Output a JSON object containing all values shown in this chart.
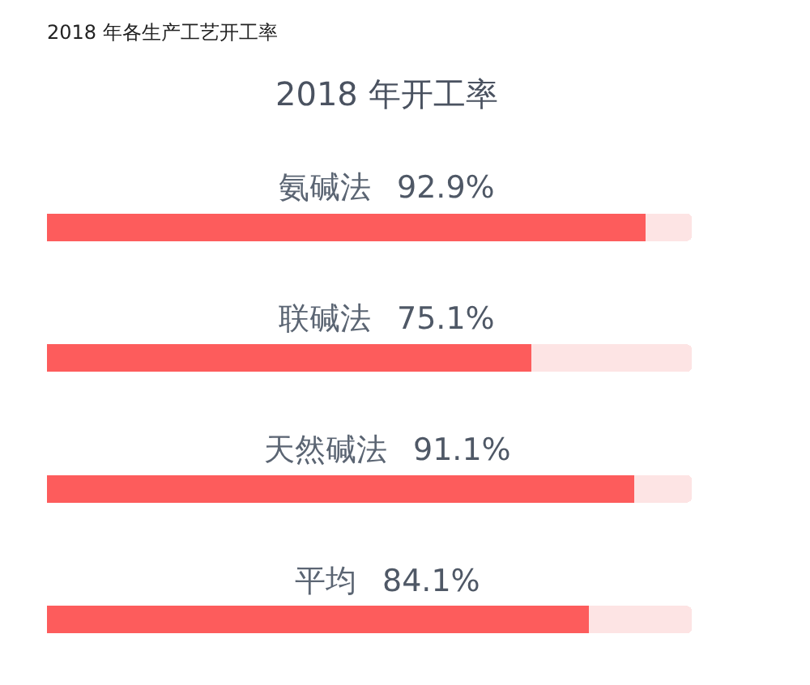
{
  "chart_data": {
    "type": "bar",
    "title": "2018 年各生产工艺开工率",
    "subtitle": "2018 年开工率",
    "orientation": "horizontal",
    "stacked": true,
    "categories": [
      "氨碱法",
      "联碱法",
      "天然碱法",
      "平均"
    ],
    "series": [
      {
        "color": "#fd5c5c",
        "values": [
          92.9,
          75.1,
          91.1,
          84.1
        ],
        "value_labels": [
          "92.9%",
          "75.1%",
          "91.1%",
          "84.1%"
        ]
      },
      {
        "color": "#fde4e4",
        "values": [
          7.1,
          24.9,
          8.9,
          15.9
        ]
      }
    ],
    "xlim": [
      0,
      100
    ],
    "tick_labels": false
  }
}
